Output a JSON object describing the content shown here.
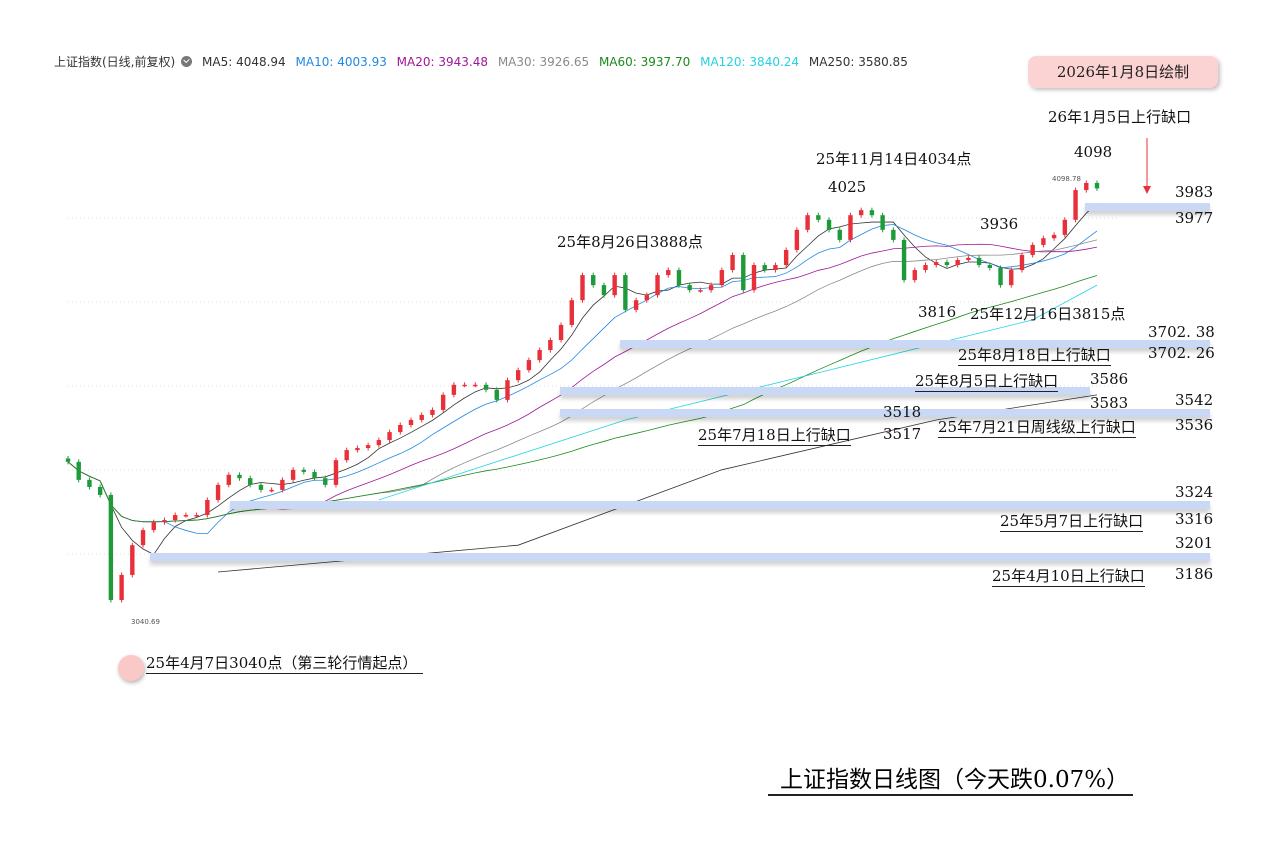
{
  "legend": {
    "name": "上证指数(日线,前复权)",
    "ma": [
      {
        "label": "MA5: 4048.94",
        "color": "#333333"
      },
      {
        "label": "MA10: 4003.93",
        "color": "#1e88e5"
      },
      {
        "label": "MA20: 3943.48",
        "color": "#a0179a"
      },
      {
        "label": "MA30: 3926.65",
        "color": "#8a8a8a"
      },
      {
        "label": "MA60: 3937.70",
        "color": "#1a8a1a"
      },
      {
        "label": "MA120: 3840.24",
        "color": "#22d3e0"
      },
      {
        "label": "MA250: 3580.85",
        "color": "#333333"
      }
    ]
  },
  "badge": "2026年1月8日绘制",
  "title": "上证指数日线图（今天跌0.07%）",
  "annotations": {
    "gap_jan5": "26年1月5日上行缺口",
    "high_4098": "4098",
    "high_label": "4098.78",
    "g3983": "3983",
    "g3977": "3977",
    "nov14": "25年11月14日4034点",
    "p4025": "4025",
    "aug26": "25年8月26日3888点",
    "p3936": "3936",
    "p3816": "3816",
    "dec16": "25年12月16日3815点",
    "g370238": "3702. 38",
    "g370226": "3702. 26",
    "aug18": "25年8月18日上行缺口",
    "aug5": "25年8月5日上行缺口",
    "g3586": "3586",
    "g3583": "3583",
    "g3542": "3542",
    "g3536": "3536",
    "p3518": "3518",
    "p3517": "3517",
    "jul18": "25年7月18日上行缺口",
    "jul21": "25年7月21日周线级上行缺口",
    "g3324": "3324",
    "g3316": "3316",
    "may7": "25年5月7日上行缺口",
    "g3201": "3201",
    "g3186": "3186",
    "apr10": "25年4月10日上行缺口",
    "low_label": "3040.69",
    "apr7": "25年4月7日3040点（第三轮行情起点）"
  },
  "chart_data": {
    "type": "candlestick",
    "up_color": "#e8303a",
    "down_color": "#1f9a3a",
    "ylim": [
      3040,
      4098
    ],
    "close": [
      3432,
      3389,
      3372,
      3353,
      3102,
      3162,
      3233,
      3269,
      3288,
      3293,
      3305,
      3305,
      3305,
      3341,
      3377,
      3401,
      3393,
      3377,
      3365,
      3365,
      3389,
      3413,
      3408,
      3393,
      3377,
      3436,
      3460,
      3465,
      3472,
      3484,
      3503,
      3520,
      3532,
      3544,
      3556,
      3592,
      3616,
      3616,
      3616,
      3604,
      3580,
      3627,
      3651,
      3675,
      3699,
      3723,
      3759,
      3818,
      3878,
      3854,
      3830,
      3878,
      3795,
      3818,
      3830,
      3878,
      3890,
      3854,
      3842,
      3842,
      3854,
      3890,
      3926,
      3842,
      3902,
      3890,
      3902,
      3938,
      3986,
      4021,
      4010,
      3986,
      3962,
      4021,
      4033,
      4021,
      3986,
      3962,
      3866,
      3890,
      3902,
      3909,
      3902,
      3914,
      3919,
      3902,
      3895,
      3854,
      3890,
      3926,
      3950,
      3966,
      3974,
      4010,
      4081,
      4098,
      4085
    ],
    "ma120": [
      [
        29,
        3341
      ],
      [
        52,
        3532
      ],
      [
        71,
        3651
      ],
      [
        90,
        3771
      ],
      [
        96,
        3854
      ]
    ],
    "ma250": [
      [
        14,
        3169
      ],
      [
        42,
        3233
      ],
      [
        61,
        3413
      ],
      [
        81,
        3532
      ],
      [
        96,
        3592
      ]
    ]
  }
}
